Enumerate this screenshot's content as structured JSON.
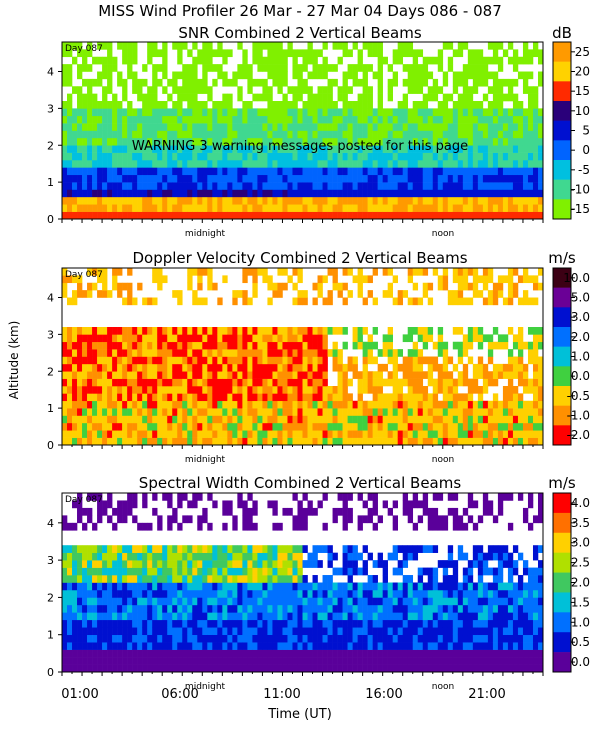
{
  "header": {
    "title": "MISS Wind Profiler  26 Mar - 27 Mar 04 Days 086 - 087"
  },
  "warning": "WARNING   3 warning messages posted for this page",
  "shared": {
    "ylabel": "Altitude (km)",
    "xlabel": "Time (UT)",
    "y_ticks": [
      "0",
      "1",
      "2",
      "3",
      "4"
    ],
    "x_ticks": [
      "01:00",
      "06:00",
      "11:00",
      "16:00",
      "21:00"
    ],
    "inner_labels": [
      "midnight",
      "noon"
    ],
    "day_label": "Day 087"
  },
  "chart_data": [
    {
      "type": "heatmap",
      "title": "SNR Combined 2 Vertical Beams",
      "unit": "dB",
      "ylabel": "Altitude (km)",
      "ylim": [
        0,
        4.8
      ],
      "colorbar": {
        "labels": [
          "25",
          "20",
          "15",
          "10",
          "5",
          "0",
          "-5",
          "-10",
          "-15"
        ],
        "colors": [
          "#ff9a00",
          "#ffd200",
          "#ff2a00",
          "#2a007a",
          "#0010d0",
          "#0064ff",
          "#00c0e0",
          "#40d890",
          "#80f000"
        ]
      }
    },
    {
      "type": "heatmap",
      "title": "Doppler Velocity Combined 2 Vertical Beams",
      "unit": "m/s",
      "ylabel": "Altitude (km)",
      "ylim": [
        0,
        4.8
      ],
      "colorbar": {
        "labels": [
          "10.0",
          "5.0",
          "3.0",
          "2.0",
          "1.0",
          "0.0",
          "-0.5",
          "-1.0",
          "-2.0"
        ],
        "colors": [
          "#3c0014",
          "#6a0096",
          "#0010d0",
          "#0070ff",
          "#00c0d8",
          "#40d040",
          "#ffd000",
          "#ff9000",
          "#ff0000"
        ]
      }
    },
    {
      "type": "heatmap",
      "title": "Spectral Width Combined 2 Vertical Beams",
      "unit": "m/s",
      "ylabel": "Altitude (km)",
      "xlabel": "Time (UT)",
      "ylim": [
        0,
        4.8
      ],
      "colorbar": {
        "labels": [
          "4.0",
          "3.5",
          "3.0",
          "2.5",
          "2.0",
          "1.5",
          "1.0",
          "0.5",
          "0.0"
        ],
        "colors": [
          "#ff0000",
          "#ff7000",
          "#ffd000",
          "#b0e000",
          "#40c860",
          "#00c0d8",
          "#0070ff",
          "#0010d0",
          "#5a009a"
        ]
      }
    }
  ]
}
